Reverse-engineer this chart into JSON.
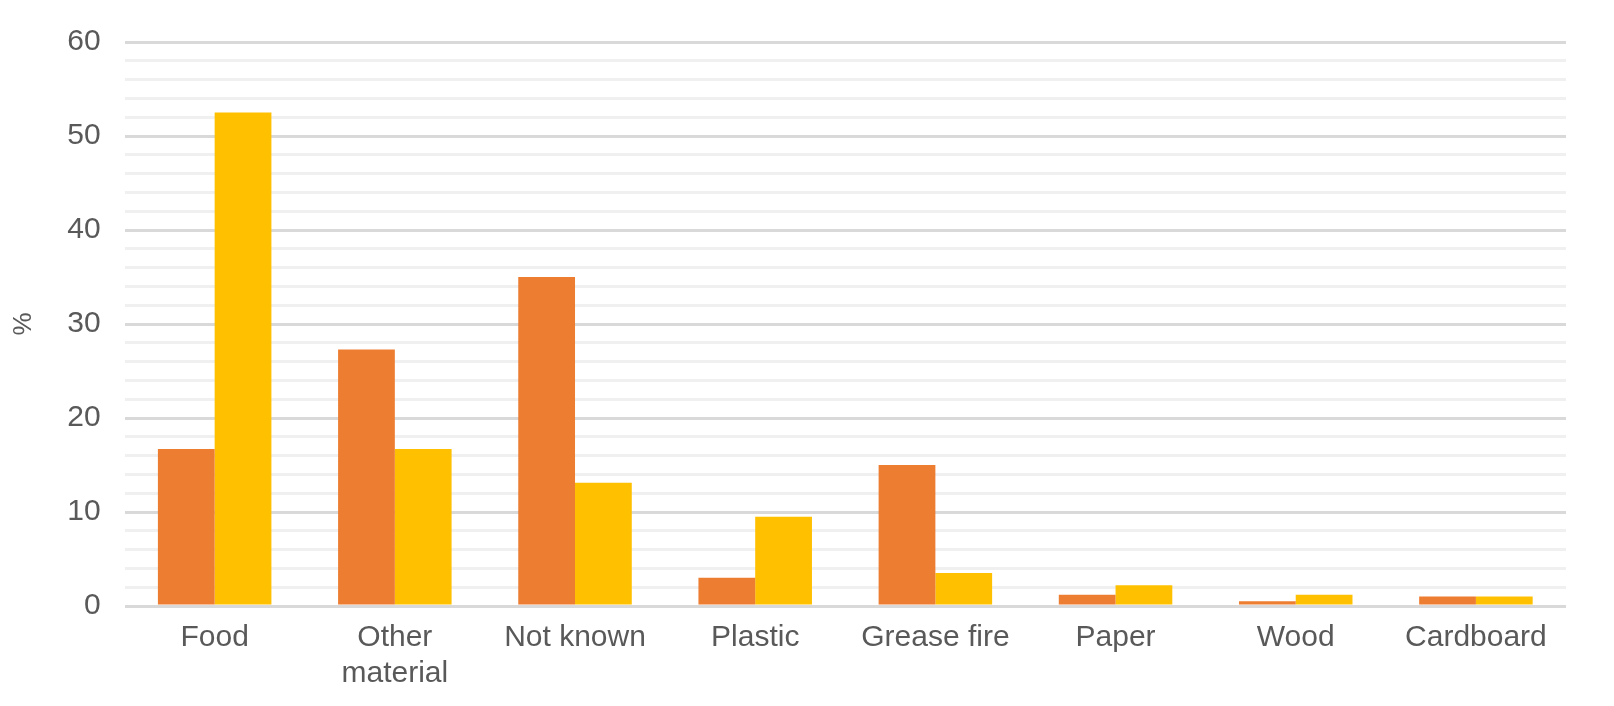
{
  "chart_data": {
    "type": "bar",
    "ylabel": "%",
    "categories": [
      "Food",
      "Other material",
      "Not known",
      "Plastic",
      "Grease fire",
      "Paper",
      "Wood",
      "Cardboard"
    ],
    "series": [
      {
        "color": "#ed7d31",
        "values": [
          16.7,
          27.3,
          35.0,
          3.0,
          15.0,
          1.2,
          0.5,
          1.0
        ]
      },
      {
        "color": "#ffc000",
        "values": [
          52.5,
          16.7,
          13.1,
          9.5,
          3.5,
          2.2,
          1.2,
          1.0
        ]
      }
    ],
    "ylim": [
      0,
      60
    ],
    "yticks": [
      0,
      {
        "value": 2,
        "label": null
      },
      {
        "value": 4,
        "label": null
      },
      {
        "value": 6,
        "label": null
      },
      {
        "value": 8,
        "label": null
      },
      10,
      {
        "value": 12,
        "label": null
      },
      {
        "value": 14,
        "label": null
      },
      {
        "value": 16,
        "label": null
      },
      {
        "value": 18,
        "label": null
      },
      20,
      {
        "value": 22,
        "label": null
      },
      {
        "value": 24,
        "label": null
      },
      {
        "value": 26,
        "label": null
      },
      {
        "value": 28,
        "label": null
      },
      30,
      {
        "value": 32,
        "label": null
      },
      {
        "value": 34,
        "label": null
      },
      {
        "value": 36,
        "label": null
      },
      {
        "value": 38,
        "label": null
      },
      40,
      {
        "value": 42,
        "label": null
      },
      {
        "value": 44,
        "label": null
      },
      {
        "value": 46,
        "label": null
      },
      {
        "value": 48,
        "label": null
      },
      50,
      {
        "value": 52,
        "label": null
      },
      {
        "value": 54,
        "label": null
      },
      {
        "value": 56,
        "label": null
      },
      {
        "value": 58,
        "label": null
      },
      60
    ],
    "grid": "y",
    "legend": false
  }
}
